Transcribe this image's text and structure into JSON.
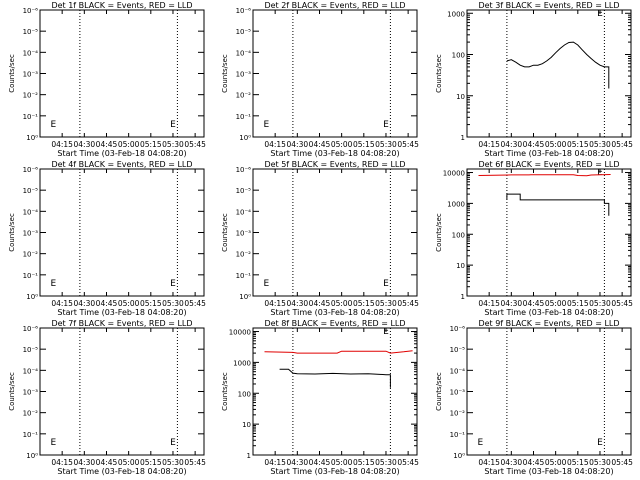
{
  "chart_data": [
    {
      "type": "line",
      "title": "Det 1f BLACK = Events, RED = LLD",
      "xlabel": "Start Time (03-Feb-18 04:08:20)",
      "ylabel": "Counts/sec",
      "xticks": [
        "04:15",
        "04:30",
        "04:45",
        "05:00",
        "05:15",
        "05:30",
        "05:45"
      ],
      "yscale": "log",
      "yticks": [
        "10⁰",
        "10⁻¹",
        "10⁻²",
        "10⁻³",
        "10⁻⁴",
        "10⁻⁵",
        "10⁻⁶"
      ],
      "ylim": [
        0,
        6
      ],
      "vlines": [
        4.45,
        5.55
      ],
      "markers": [
        {
          "text": "E",
          "x": 4.15
        },
        {
          "text": "E",
          "x": 5.5
        }
      ],
      "series": []
    },
    {
      "type": "line",
      "title": "Det 2f BLACK = Events, RED = LLD",
      "xlabel": "Start Time (03-Feb-18 04:08:20)",
      "ylabel": "Counts/sec",
      "xticks": [
        "04:15",
        "04:30",
        "04:45",
        "05:00",
        "05:15",
        "05:30",
        "05:45"
      ],
      "yscale": "log",
      "yticks": [
        "10⁰",
        "10⁻¹",
        "10⁻²",
        "10⁻³",
        "10⁻⁴",
        "10⁻⁵",
        "10⁻⁶"
      ],
      "ylim": [
        0,
        6
      ],
      "vlines": [
        4.45,
        5.55
      ],
      "markers": [
        {
          "text": "E",
          "x": 4.15
        },
        {
          "text": "E",
          "x": 5.5
        }
      ],
      "series": []
    },
    {
      "type": "line",
      "title": "Det 3f BLACK = Events, RED = LLD",
      "xlabel": "Start Time (03-Feb-18 04:08:20)",
      "ylabel": "Counts/sec",
      "xticks": [
        "04:15",
        "04:30",
        "04:45",
        "05:00",
        "05:15",
        "05:30",
        "05:45"
      ],
      "yscale": "log",
      "yticks": [
        "1",
        "10",
        "100",
        "1000"
      ],
      "ylim": [
        1,
        1200
      ],
      "vlines": [
        4.45,
        5.55
      ],
      "markers": [
        {
          "text": "E",
          "x": 5.5
        }
      ],
      "series": [
        {
          "color": "#000000",
          "x": [
            4.45,
            4.5,
            4.55,
            4.6,
            4.65,
            4.7,
            4.75,
            4.8,
            4.85,
            4.9,
            4.95,
            5.0,
            5.05,
            5.1,
            5.15,
            5.2,
            5.25,
            5.3,
            5.35,
            5.4,
            5.45,
            5.5,
            5.55,
            5.6,
            5.6
          ],
          "y": [
            70,
            75,
            65,
            55,
            50,
            50,
            55,
            55,
            60,
            70,
            85,
            110,
            140,
            170,
            195,
            200,
            170,
            130,
            100,
            80,
            65,
            55,
            50,
            50,
            15
          ]
        }
      ]
    },
    {
      "type": "line",
      "title": "Det 4f BLACK = Events, RED = LLD",
      "xlabel": "Start Time (03-Feb-18 04:08:20)",
      "ylabel": "Counts/sec",
      "xticks": [
        "04:15",
        "04:30",
        "04:45",
        "05:00",
        "05:15",
        "05:30",
        "05:45"
      ],
      "yscale": "log",
      "yticks": [
        "10⁰",
        "10⁻¹",
        "10⁻²",
        "10⁻³",
        "10⁻⁴",
        "10⁻⁵",
        "10⁻⁶"
      ],
      "ylim": [
        0,
        6
      ],
      "vlines": [
        4.45,
        5.55
      ],
      "markers": [
        {
          "text": "E",
          "x": 4.15
        },
        {
          "text": "E",
          "x": 5.5
        }
      ],
      "series": []
    },
    {
      "type": "line",
      "title": "Det 5f BLACK = Events, RED = LLD",
      "xlabel": "Start Time (03-Feb-18 04:08:20)",
      "ylabel": "Counts/sec",
      "xticks": [
        "04:15",
        "04:30",
        "04:45",
        "05:00",
        "05:15",
        "05:30",
        "05:45"
      ],
      "yscale": "log",
      "yticks": [
        "10⁰",
        "10⁻¹",
        "10⁻²",
        "10⁻³",
        "10⁻⁴",
        "10⁻⁵",
        "10⁻⁶"
      ],
      "ylim": [
        0,
        6
      ],
      "vlines": [
        4.45,
        5.55
      ],
      "markers": [
        {
          "text": "E",
          "x": 4.15
        },
        {
          "text": "E",
          "x": 5.5
        }
      ],
      "series": []
    },
    {
      "type": "line",
      "title": "Det 6f BLACK = Events, RED = LLD",
      "xlabel": "Start Time (03-Feb-18 04:08:20)",
      "ylabel": "Counts/sec",
      "xticks": [
        "04:15",
        "04:30",
        "04:45",
        "05:00",
        "05:15",
        "05:30",
        "05:45"
      ],
      "yscale": "log",
      "yticks": [
        "1",
        "10",
        "100",
        "1000",
        "10000"
      ],
      "ylim": [
        1,
        13000
      ],
      "vlines": [
        4.45,
        5.55
      ],
      "markers": [
        {
          "text": "E",
          "x": 5.5
        }
      ],
      "series": [
        {
          "color": "#e00000",
          "x": [
            4.13,
            4.5,
            4.7,
            4.72,
            5.2,
            5.25,
            5.35,
            5.4,
            5.62
          ],
          "y": [
            8000,
            8400,
            8400,
            8500,
            8500,
            8000,
            7900,
            8300,
            8600
          ]
        },
        {
          "color": "#000000",
          "x": [
            4.45,
            4.45,
            4.6,
            4.6,
            5.55,
            5.55,
            5.6,
            5.6
          ],
          "y": [
            1300,
            2000,
            2000,
            1300,
            1300,
            1000,
            1000,
            400
          ]
        }
      ]
    },
    {
      "type": "line",
      "title": "Det 7f BLACK = Events, RED = LLD",
      "xlabel": "Start Time (03-Feb-18 04:08:20)",
      "ylabel": "Counts/sec",
      "xticks": [
        "04:15",
        "04:30",
        "04:45",
        "05:00",
        "05:15",
        "05:30",
        "05:45"
      ],
      "yscale": "log",
      "yticks": [
        "10⁰",
        "10⁻¹",
        "10⁻²",
        "10⁻³",
        "10⁻⁴",
        "10⁻⁵",
        "10⁻⁶"
      ],
      "ylim": [
        0,
        6
      ],
      "vlines": [
        4.45,
        5.55
      ],
      "markers": [
        {
          "text": "E",
          "x": 4.15
        },
        {
          "text": "E",
          "x": 5.5
        }
      ],
      "series": []
    },
    {
      "type": "line",
      "title": "Det 8f BLACK = Events, RED = LLD",
      "xlabel": "Start Time (03-Feb-18 04:08:20)",
      "ylabel": "Counts/sec",
      "xticks": [
        "04:15",
        "04:30",
        "04:45",
        "05:00",
        "05:15",
        "05:30",
        "05:45"
      ],
      "yscale": "log",
      "yticks": [
        "1",
        "10",
        "100",
        "1000",
        "10000"
      ],
      "ylim": [
        1,
        13000
      ],
      "vlines": [
        4.45,
        5.55
      ],
      "markers": [
        {
          "text": "E",
          "x": 5.5
        }
      ],
      "series": [
        {
          "color": "#e00000",
          "x": [
            4.13,
            4.45,
            4.5,
            4.95,
            5.0,
            5.5,
            5.55,
            5.7,
            5.8
          ],
          "y": [
            2200,
            2100,
            2000,
            2000,
            2300,
            2300,
            2000,
            2200,
            2400
          ]
        },
        {
          "color": "#000000",
          "x": [
            4.3,
            4.3,
            4.4,
            4.45,
            4.5,
            4.7,
            4.9,
            5.1,
            5.3,
            5.5,
            5.55,
            5.55
          ],
          "y": [
            600,
            600,
            600,
            450,
            430,
            420,
            440,
            420,
            430,
            400,
            400,
            150
          ]
        }
      ]
    },
    {
      "type": "line",
      "title": "Det 9f BLACK = Events, RED = LLD",
      "xlabel": "Start Time (03-Feb-18 04:08:20)",
      "ylabel": "Counts/sec",
      "xticks": [
        "04:15",
        "04:30",
        "04:45",
        "05:00",
        "05:15",
        "05:30",
        "05:45"
      ],
      "yscale": "log",
      "yticks": [
        "10⁰",
        "10⁻¹",
        "10⁻²",
        "10⁻³",
        "10⁻⁴",
        "10⁻⁵",
        "10⁻⁶"
      ],
      "ylim": [
        0,
        6
      ],
      "vlines": [
        4.45,
        5.55
      ],
      "markers": [
        {
          "text": "E",
          "x": 4.15
        },
        {
          "text": "E",
          "x": 5.5
        }
      ],
      "series": []
    }
  ]
}
